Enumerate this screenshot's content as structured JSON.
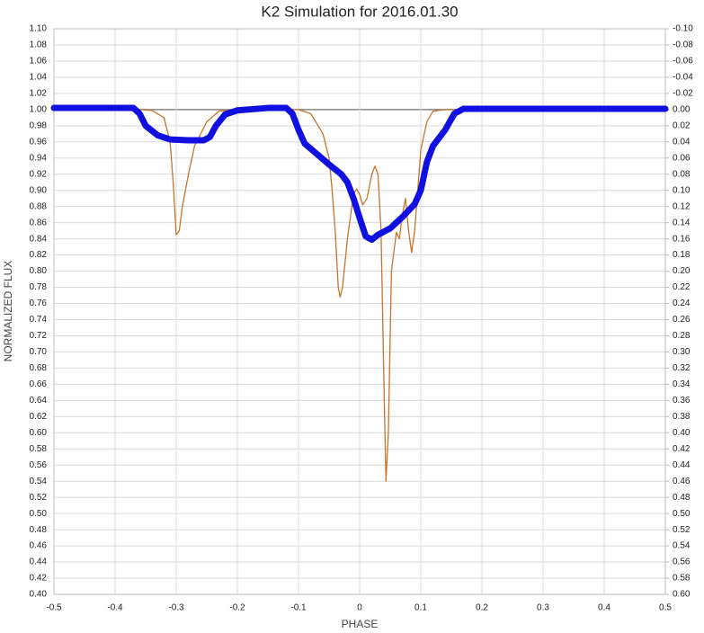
{
  "chart_data": {
    "type": "line",
    "title": "K2 Simulation for 2016.01.30",
    "x_label": "PHASE",
    "y_label": "NORMALIZED FLUX",
    "xlim": [
      -0.5,
      0.5
    ],
    "xticks": [
      -0.5,
      -0.4,
      -0.3,
      -0.2,
      -0.1,
      0,
      0.1,
      0.2,
      0.3,
      0.4,
      0.5
    ],
    "ylim": [
      0.4,
      1.1
    ],
    "yticks": [
      {
        "value": 0.4,
        "label": "0.40"
      },
      0.42,
      0.44,
      0.46,
      0.48,
      {
        "value": 0.5,
        "label": "0.50"
      },
      0.52,
      0.54,
      0.56,
      0.58,
      {
        "value": 0.6,
        "label": "0.60"
      },
      0.62,
      0.64,
      0.66,
      0.68,
      {
        "value": 0.7,
        "label": "0.70"
      },
      0.72,
      0.74,
      0.76,
      0.78,
      {
        "value": 0.8,
        "label": "0.80"
      },
      0.82,
      0.84,
      0.86,
      0.88,
      {
        "value": 0.9,
        "label": "0.90"
      },
      0.92,
      0.94,
      0.96,
      0.98,
      {
        "value": 1.0,
        "label": "1.00"
      },
      1.02,
      1.04,
      1.06,
      1.08,
      {
        "value": 1.1,
        "label": "1.10"
      }
    ],
    "y2lim": [
      0.6,
      -0.1
    ],
    "y2ticks": [
      {
        "value": -0.1,
        "label": "-0.10"
      },
      -0.08,
      -0.06,
      -0.04,
      -0.02,
      {
        "value": 0,
        "label": "0.00"
      },
      0.02,
      0.04,
      0.06,
      0.08,
      {
        "value": 0.1,
        "label": "0.10"
      },
      0.12,
      0.14,
      0.16,
      0.18,
      {
        "value": 0.2,
        "label": "0.20"
      },
      0.22,
      0.24,
      0.26,
      0.28,
      {
        "value": 0.3,
        "label": "0.30"
      },
      0.32,
      0.34,
      0.36,
      0.38,
      {
        "value": 0.4,
        "label": "0.40"
      },
      0.42,
      0.44,
      0.46,
      0.48,
      {
        "value": 0.5,
        "label": "0.50"
      },
      0.52,
      0.54,
      0.56,
      0.58,
      {
        "value": 0.6,
        "label": "0.60"
      }
    ],
    "grid": true,
    "series": [
      {
        "color": "#c8742a",
        "width": 1.3,
        "x": [
          -0.5,
          -0.36,
          -0.34,
          -0.32,
          -0.31,
          -0.305,
          -0.3,
          -0.295,
          -0.29,
          -0.28,
          -0.27,
          -0.25,
          -0.23,
          -0.2,
          -0.1,
          -0.08,
          -0.06,
          -0.05,
          -0.045,
          -0.04,
          -0.035,
          -0.032,
          -0.028,
          -0.02,
          -0.01,
          -0.005,
          0,
          0.005,
          0.012,
          0.02,
          0.025,
          0.03,
          0.035,
          0.04,
          0.043,
          0.047,
          0.052,
          0.06,
          0.065,
          0.07,
          0.075,
          0.08,
          0.085,
          0.09,
          0.095,
          0.1,
          0.11,
          0.12,
          0.14,
          0.5
        ],
        "values": [
          1.0,
          1.0,
          0.999,
          0.99,
          0.96,
          0.91,
          0.845,
          0.85,
          0.88,
          0.92,
          0.955,
          0.985,
          0.998,
          1.0,
          1.0,
          0.995,
          0.97,
          0.94,
          0.9,
          0.85,
          0.78,
          0.768,
          0.78,
          0.84,
          0.895,
          0.902,
          0.895,
          0.882,
          0.89,
          0.92,
          0.93,
          0.92,
          0.85,
          0.65,
          0.54,
          0.6,
          0.8,
          0.848,
          0.84,
          0.87,
          0.89,
          0.85,
          0.823,
          0.85,
          0.9,
          0.95,
          0.985,
          0.998,
          1.0,
          1.0
        ]
      },
      {
        "color": "#1010e0",
        "width": 7,
        "x": [
          -0.5,
          -0.37,
          -0.36,
          -0.35,
          -0.33,
          -0.31,
          -0.28,
          -0.255,
          -0.245,
          -0.235,
          -0.22,
          -0.2,
          -0.15,
          -0.12,
          -0.11,
          -0.1,
          -0.09,
          -0.07,
          -0.05,
          -0.03,
          -0.02,
          -0.01,
          0,
          0.01,
          0.02,
          0.03,
          0.05,
          0.07,
          0.09,
          0.1,
          0.11,
          0.12,
          0.14,
          0.155,
          0.17,
          0.5
        ],
        "values": [
          1.002,
          1.002,
          0.995,
          0.98,
          0.968,
          0.963,
          0.962,
          0.962,
          0.966,
          0.98,
          0.994,
          0.999,
          1.002,
          1.002,
          0.995,
          0.975,
          0.958,
          0.945,
          0.932,
          0.92,
          0.91,
          0.89,
          0.866,
          0.843,
          0.839,
          0.845,
          0.853,
          0.867,
          0.883,
          0.9,
          0.935,
          0.955,
          0.975,
          0.995,
          1.001,
          1.001
        ]
      }
    ]
  }
}
